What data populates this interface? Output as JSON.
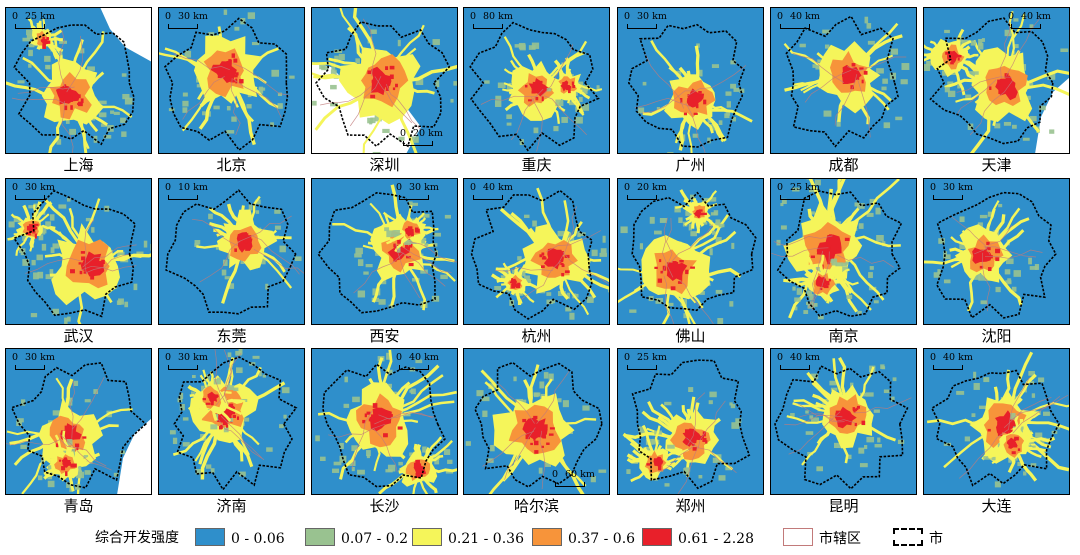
{
  "cities": [
    {
      "name": "上海",
      "scale": "25 km",
      "scale_pos": "top-left",
      "sea": "top-right"
    },
    {
      "name": "北京",
      "scale": "30 km",
      "scale_pos": "top-left"
    },
    {
      "name": "深圳",
      "scale": "20 km",
      "scale_pos": "bottom-right",
      "sea": "bottom-left"
    },
    {
      "name": "重庆",
      "scale": "80 km",
      "scale_pos": "top-left"
    },
    {
      "name": "广州",
      "scale": "30 km",
      "scale_pos": "top-left"
    },
    {
      "name": "成都",
      "scale": "40 km",
      "scale_pos": "top-left"
    },
    {
      "name": "天津",
      "scale": "40 km",
      "scale_pos": "top-right",
      "sea": "right"
    },
    {
      "name": "武汉",
      "scale": "30 km",
      "scale_pos": "top-left"
    },
    {
      "name": "东莞",
      "scale": "10 km",
      "scale_pos": "top-left"
    },
    {
      "name": "西安",
      "scale": "30 km",
      "scale_pos": "top-right"
    },
    {
      "name": "杭州",
      "scale": "40 km",
      "scale_pos": "top-left"
    },
    {
      "name": "佛山",
      "scale": "20 km",
      "scale_pos": "top-left"
    },
    {
      "name": "南京",
      "scale": "25 km",
      "scale_pos": "top-left"
    },
    {
      "name": "沈阳",
      "scale": "30 km",
      "scale_pos": "top-left"
    },
    {
      "name": "青岛",
      "scale": "30 km",
      "scale_pos": "top-left",
      "sea": "right"
    },
    {
      "name": "济南",
      "scale": "30 km",
      "scale_pos": "top-left"
    },
    {
      "name": "长沙",
      "scale": "40 km",
      "scale_pos": "top-right"
    },
    {
      "name": "哈尔滨",
      "scale": "60 km",
      "scale_pos": "bottom-right"
    },
    {
      "name": "郑州",
      "scale": "25 km",
      "scale_pos": "top-left"
    },
    {
      "name": "昆明",
      "scale": "40 km",
      "scale_pos": "top-left"
    },
    {
      "name": "大连",
      "scale": "40 km",
      "scale_pos": "top-left"
    }
  ],
  "legend": {
    "title": "综合开发强度",
    "classes": [
      {
        "label": "0 - 0.06",
        "color": "#2f8fcb"
      },
      {
        "label": "0.07 - 0.2",
        "color": "#99c290"
      },
      {
        "label": "0.21 - 0.36",
        "color": "#f5f55a"
      },
      {
        "label": "0.37 - 0.6",
        "color": "#f7943a"
      },
      {
        "label": "0.61 - 2.28",
        "color": "#e8202a"
      }
    ],
    "district_label": "市辖区",
    "city_label": "市"
  },
  "colors": {
    "background": "#2f8fcb",
    "sea": "#ffffff",
    "district_line": "#c27a7a",
    "city_line": "#000000"
  }
}
